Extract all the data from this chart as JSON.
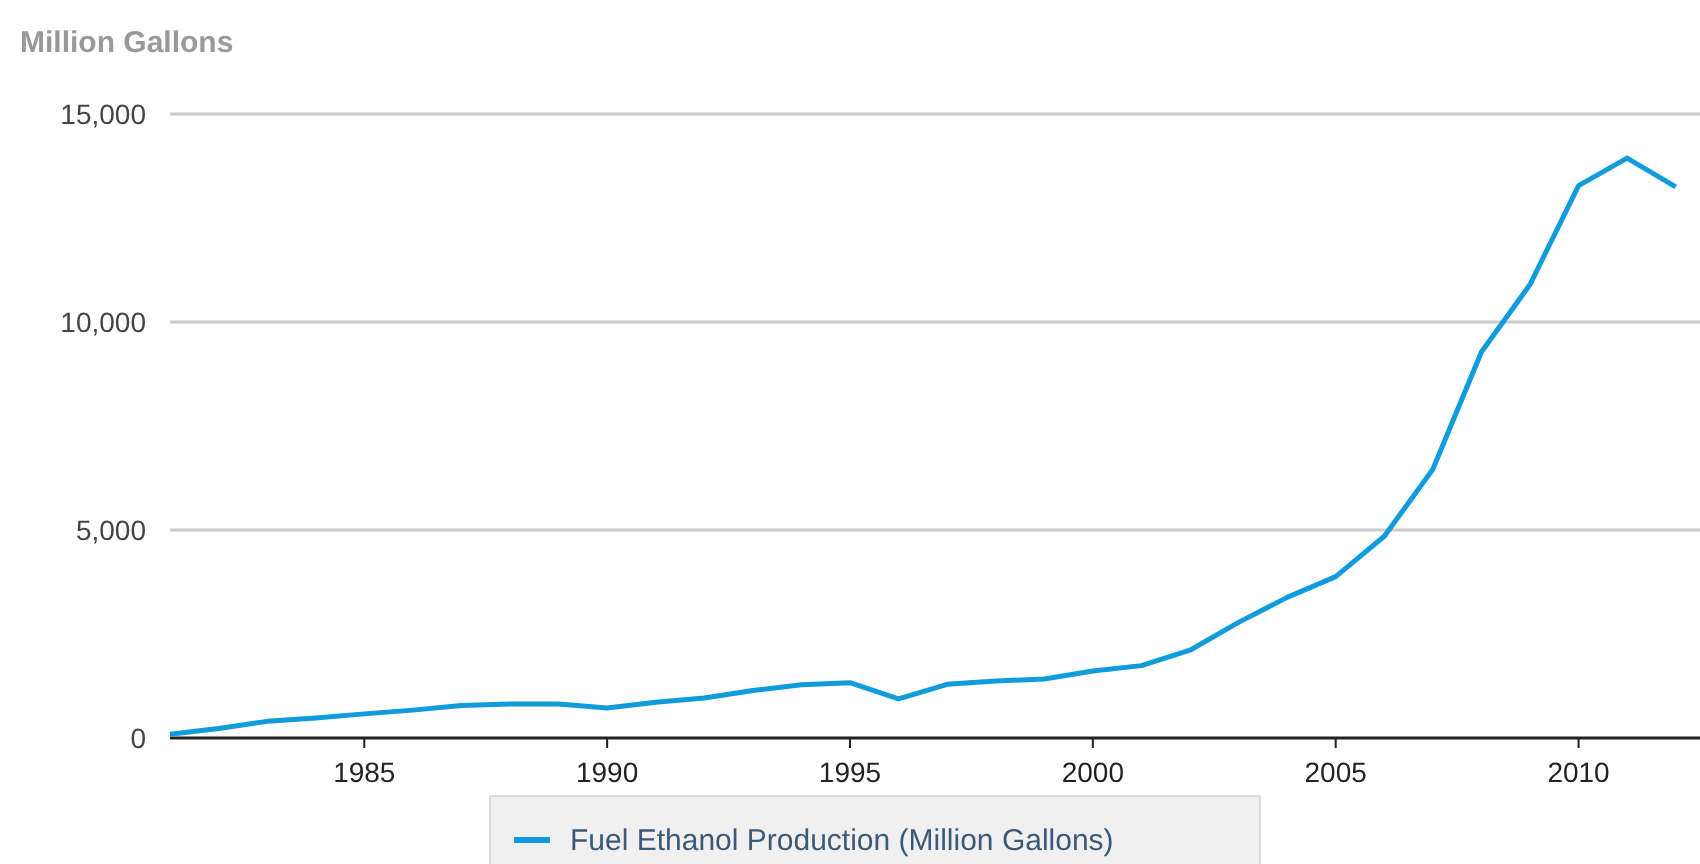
{
  "chart_data": {
    "type": "line",
    "ylabel": "Million Gallons",
    "x": [
      1981,
      1982,
      1983,
      1984,
      1985,
      1986,
      1987,
      1988,
      1989,
      1990,
      1991,
      1992,
      1993,
      1994,
      1995,
      1996,
      1997,
      1998,
      1999,
      2000,
      2001,
      2002,
      2003,
      2004,
      2005,
      2006,
      2007,
      2008,
      2009,
      2010,
      2011,
      2012
    ],
    "series": [
      {
        "name": "Fuel Ethanol Production (Million Gallons)",
        "color": "#0f9bdc",
        "values": [
          90,
          230,
          400,
          480,
          580,
          670,
          780,
          820,
          820,
          720,
          860,
          960,
          1140,
          1280,
          1330,
          940,
          1290,
          1370,
          1420,
          1610,
          1740,
          2110,
          2780,
          3380,
          3880,
          4850,
          6460,
          9280,
          10900,
          13280,
          13940,
          13250
        ]
      }
    ],
    "xlim": [
      1981,
      2012.5
    ],
    "xticks": [
      1985,
      1990,
      1995,
      2000,
      2005,
      2010
    ],
    "ylim": [
      0,
      15000
    ],
    "yticks": [
      {
        "value": 0,
        "label": "0"
      },
      {
        "value": 5000,
        "label": "5,000"
      },
      {
        "value": 10000,
        "label": "10,000"
      },
      {
        "value": 15000,
        "label": "15,000"
      }
    ],
    "grid": "y",
    "legend": "bottom",
    "line_style": "solid",
    "marker": "none"
  }
}
